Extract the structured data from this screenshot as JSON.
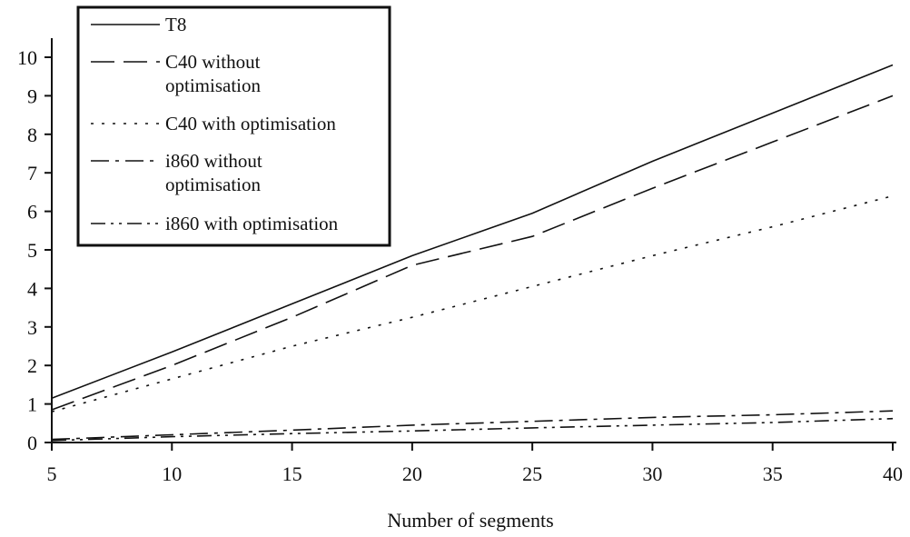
{
  "chart_data": {
    "type": "line",
    "title": "",
    "xlabel": "Number of segments",
    "ylabel": "",
    "x": [
      5,
      10,
      15,
      20,
      25,
      30,
      35,
      40
    ],
    "xticks": [
      5,
      10,
      15,
      20,
      25,
      30,
      35,
      40
    ],
    "yticks": [
      0,
      1,
      2,
      3,
      4,
      5,
      6,
      7,
      8,
      9,
      10
    ],
    "xlim": [
      5,
      40
    ],
    "ylim": [
      0,
      10.5
    ],
    "grid": false,
    "legend_position": "top-left",
    "series": [
      {
        "name": "T8",
        "dash": "solid",
        "values": [
          1.15,
          2.35,
          3.6,
          4.85,
          5.95,
          7.3,
          8.55,
          9.8
        ]
      },
      {
        "name": "C40 without optimisation",
        "dash": "long-dash",
        "values": [
          0.85,
          2.0,
          3.25,
          4.6,
          5.35,
          6.6,
          7.8,
          9.0
        ]
      },
      {
        "name": "C40 with optimisation",
        "dash": "dotted",
        "values": [
          0.8,
          1.65,
          2.5,
          3.25,
          4.05,
          4.85,
          5.6,
          6.4
        ]
      },
      {
        "name": "i860 without optimisation",
        "dash": "dash-dot",
        "values": [
          0.08,
          0.2,
          0.32,
          0.45,
          0.55,
          0.65,
          0.72,
          0.82
        ]
      },
      {
        "name": "i860 with optimisation",
        "dash": "dash-dot-dot",
        "values": [
          0.05,
          0.15,
          0.23,
          0.3,
          0.38,
          0.45,
          0.52,
          0.62
        ]
      }
    ]
  },
  "legend": {
    "items": [
      {
        "lines": [
          "T8"
        ]
      },
      {
        "lines": [
          "C40 without",
          "optimisation"
        ]
      },
      {
        "lines": [
          "C40 with optimisation"
        ]
      },
      {
        "lines": [
          "i860 without",
          "optimisation"
        ]
      },
      {
        "lines": [
          "i860 with optimisation"
        ]
      }
    ]
  },
  "colors": {
    "ink": "#111111",
    "background": "#ffffff"
  }
}
